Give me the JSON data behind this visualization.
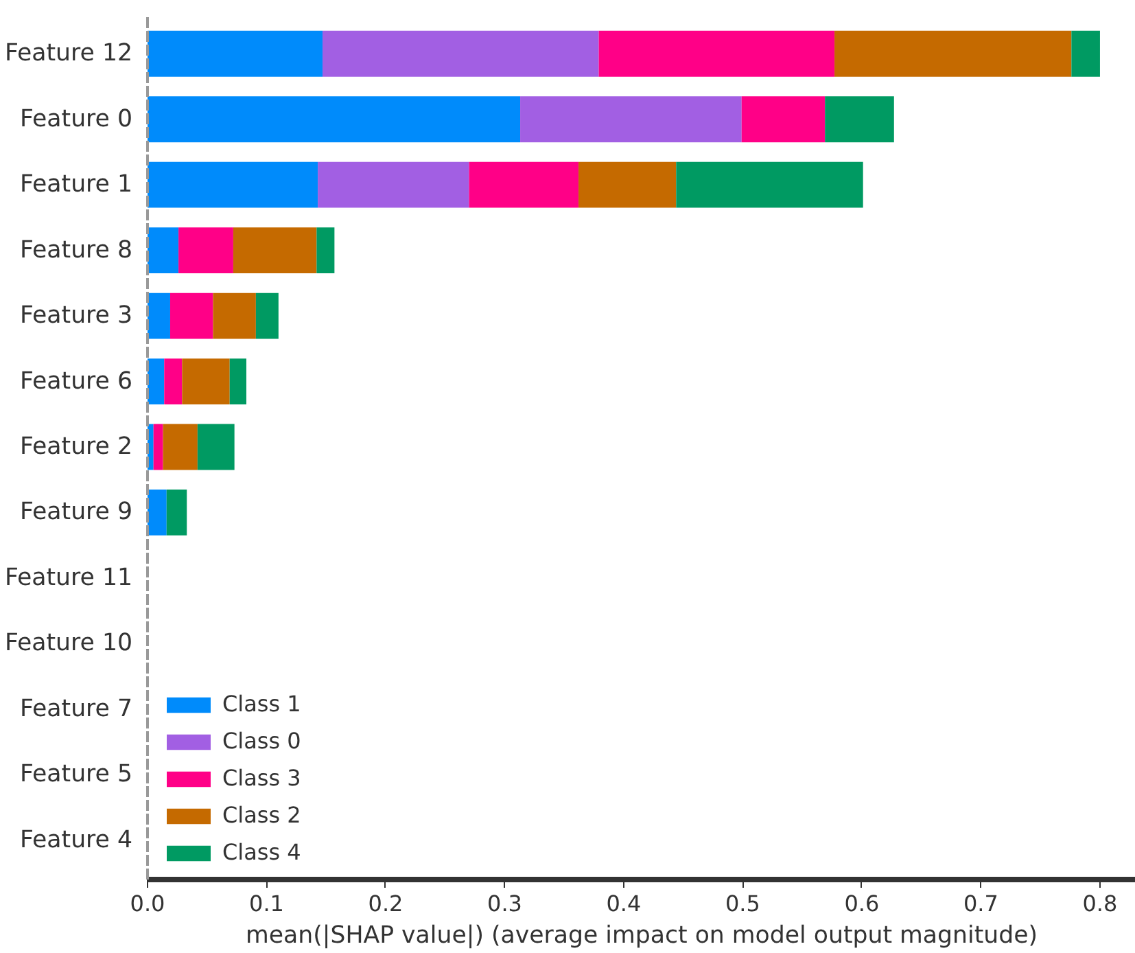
{
  "chart_data": {
    "type": "bar",
    "orientation": "horizontal",
    "stacked": true,
    "xlabel": "mean(|SHAP value|) (average impact on model output magnitude)",
    "categories": [
      "Feature 12",
      "Feature 0",
      "Feature 1",
      "Feature 8",
      "Feature 3",
      "Feature 6",
      "Feature 2",
      "Feature 9",
      "Feature 11",
      "Feature 10",
      "Feature 7",
      "Feature 5",
      "Feature 4"
    ],
    "series": [
      {
        "name": "Class 1",
        "color": "#008bfb",
        "values": [
          0.147,
          0.313,
          0.143,
          0.026,
          0.019,
          0.014,
          0.005,
          0.016,
          0,
          0,
          0,
          0,
          0
        ]
      },
      {
        "name": "Class 0",
        "color": "#a25fe3",
        "values": [
          0.232,
          0.186,
          0.127,
          0,
          0,
          0,
          0,
          0,
          0,
          0,
          0,
          0,
          0
        ]
      },
      {
        "name": "Class 3",
        "color": "#ff0087",
        "values": [
          0.198,
          0.07,
          0.092,
          0.046,
          0.036,
          0.015,
          0.008,
          0,
          0,
          0,
          0,
          0,
          0
        ]
      },
      {
        "name": "Class 2",
        "color": "#c56a00",
        "values": [
          0.199,
          0,
          0.082,
          0.07,
          0.036,
          0.04,
          0.029,
          0,
          0,
          0,
          0,
          0,
          0
        ]
      },
      {
        "name": "Class 4",
        "color": "#009a62",
        "values": [
          0.024,
          0.058,
          0.157,
          0.015,
          0.019,
          0.014,
          0.031,
          0.017,
          0,
          0,
          0,
          0,
          0
        ]
      }
    ],
    "xlim": [
      0,
      0.83
    ],
    "xticks": [
      {
        "value": 0,
        "label": "0.0"
      },
      0.1,
      0.2,
      0.3,
      0.4,
      0.5,
      0.6,
      0.7,
      0.8
    ],
    "grid": false,
    "legend": "bottom left"
  }
}
